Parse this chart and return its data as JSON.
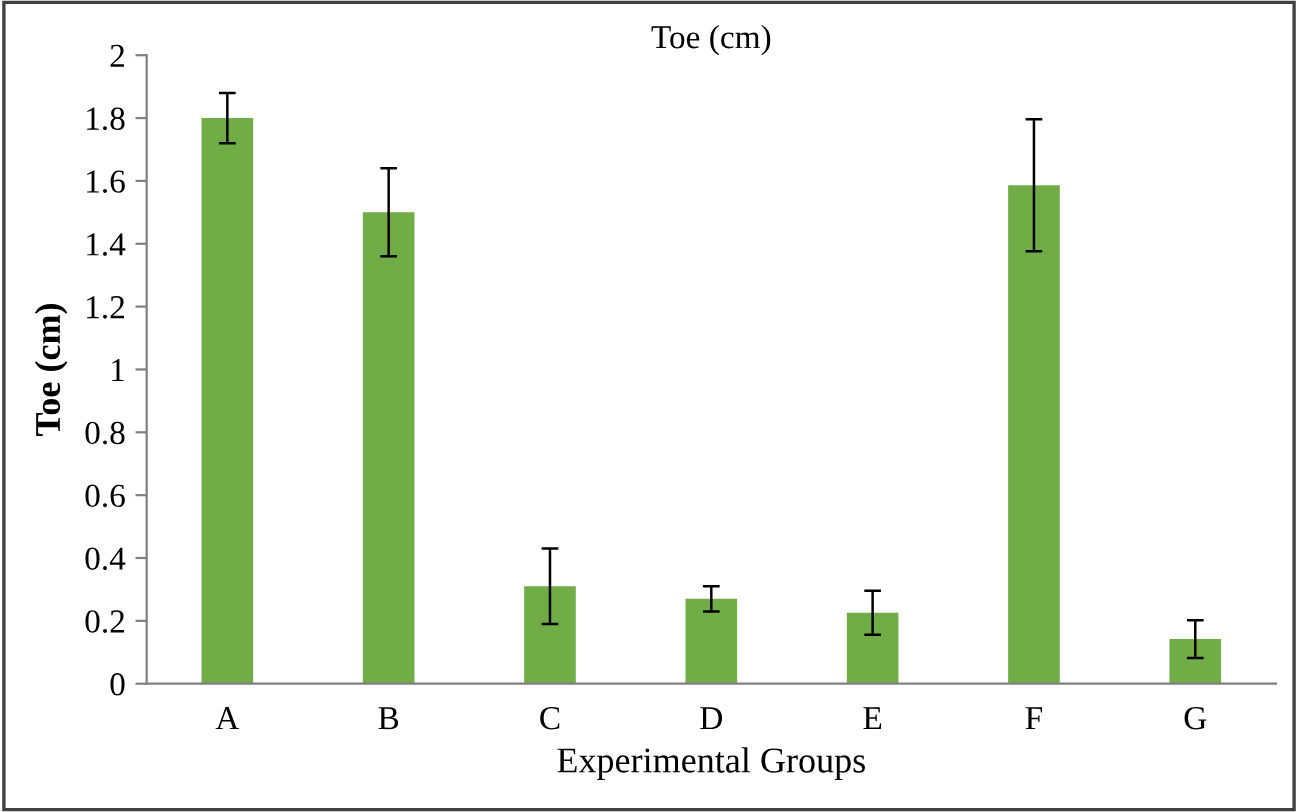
{
  "chart_data": {
    "type": "bar",
    "title": "Toe (cm)",
    "xlabel": "Experimental Groups",
    "ylabel": "Toe (cm)",
    "categories": [
      "A",
      "B",
      "C",
      "D",
      "E",
      "F",
      "G"
    ],
    "values": [
      1.8,
      1.5,
      0.31,
      0.27,
      0.226,
      1.586,
      0.142
    ],
    "errors": [
      0.08,
      0.14,
      0.12,
      0.04,
      0.07,
      0.21,
      0.06
    ],
    "color": "#70ad47",
    "ylim": [
      0,
      2
    ],
    "yticks": [
      0,
      {
        "value": 0.2,
        "label": "0.2"
      },
      {
        "value": 0.4,
        "label": "0.4"
      },
      {
        "value": 0.6,
        "label": "0.6"
      },
      {
        "value": 0.8,
        "label": "0.8"
      },
      1,
      {
        "value": 1.2,
        "label": "1.2"
      },
      {
        "value": 1.4,
        "label": "1.4"
      },
      {
        "value": 1.6,
        "label": "1.6"
      },
      {
        "value": 1.8,
        "label": "1.8"
      },
      2
    ],
    "grid": false
  }
}
